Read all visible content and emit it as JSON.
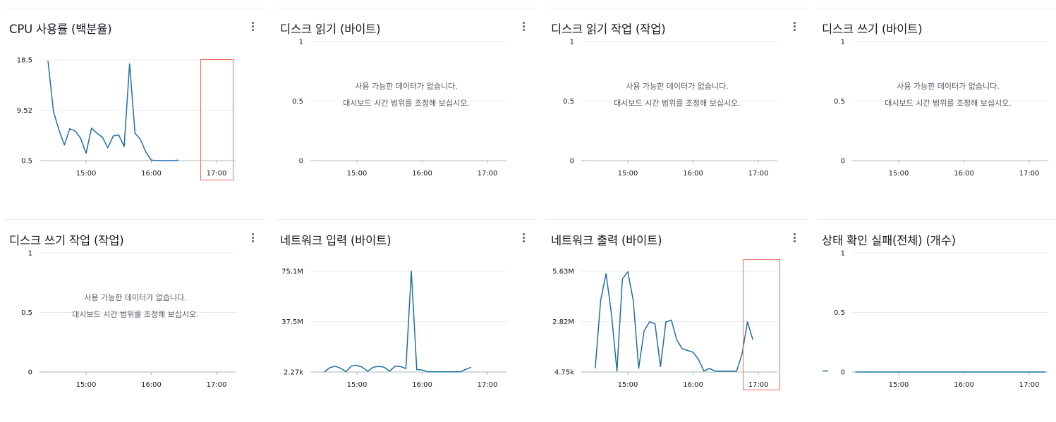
{
  "menu_icon": "more-vertical-icon",
  "colors": {
    "series": "#1f6fa5",
    "highlight": "#f26b5b",
    "grid": "#e9ebed"
  },
  "nodata": {
    "line1": "사용 가능한 데이터가 없습니다.",
    "line2": "대시보드 시간 범위를 조정해 보십시오."
  },
  "panels": [
    {
      "title": "CPU 사용률 (백분율)",
      "chart_data": {
        "type": "line",
        "y_ticks": [
          "18.5",
          "9.52",
          "0.5"
        ],
        "ylim": [
          0.5,
          18.5
        ],
        "x_ticks": [
          "15:00",
          "16:00",
          "17:00"
        ],
        "xlim": [
          -41,
          85
        ],
        "highlighted": true,
        "series": [
          {
            "x": [
              -35,
              -30,
              -25,
              -20,
              -15,
              -10,
              -5,
              0,
              5,
              10,
              15,
              20,
              25,
              30,
              35,
              40,
              45,
              50,
              55,
              60,
              65,
              70,
              75,
              80,
              85
            ],
            "y": [
              18.3,
              9.3,
              6,
              3.3,
              6.2,
              5.8,
              4.5,
              1.8,
              6.3,
              5.4,
              4.7,
              2.8,
              4.9,
              5.1,
              3.0,
              17.8,
              5.4,
              4.3,
              2.0,
              0.6,
              0.5,
              0.5,
              0.5,
              0.5,
              0.6
            ]
          }
        ]
      }
    },
    {
      "title": "디스크 읽기 (바이트)",
      "chart_data": {
        "type": "line",
        "y_ticks": [
          "1",
          "0.5",
          "0"
        ],
        "ylim": [
          0,
          1
        ],
        "x_ticks": [
          "15:00",
          "16:00",
          "17:00"
        ],
        "series": []
      }
    },
    {
      "title": "디스크 읽기 작업 (작업)",
      "chart_data": {
        "type": "line",
        "y_ticks": [
          "1",
          "0.5",
          "0"
        ],
        "ylim": [
          0,
          1
        ],
        "x_ticks": [
          "15:00",
          "16:00",
          "17:00"
        ],
        "series": []
      }
    },
    {
      "title": "디스크 쓰기 (바이트)",
      "chart_data": {
        "type": "line",
        "y_ticks": [
          "1",
          "0.5",
          "0"
        ],
        "ylim": [
          0,
          1
        ],
        "x_ticks": [
          "15:00",
          "16:00",
          "17:00"
        ],
        "series": []
      }
    },
    {
      "title": "디스크 쓰기 작업 (작업)",
      "chart_data": {
        "type": "line",
        "y_ticks": [
          "1",
          "0.5",
          "0"
        ],
        "ylim": [
          0,
          1
        ],
        "x_ticks": [
          "15:00",
          "16:00",
          "17:00"
        ],
        "series": []
      }
    },
    {
      "title": "네트워크 입력 (바이트)",
      "chart_data": {
        "type": "line",
        "y_ticks": [
          "75.1M",
          "37.5M",
          "2.27k"
        ],
        "ylim": [
          0,
          75.1
        ],
        "x_ticks": [
          "15:00",
          "16:00",
          "17:00"
        ],
        "series": [
          {
            "x": [
              -30,
              -25,
              -20,
              -15,
              -10,
              -5,
              0,
              5,
              10,
              15,
              20,
              25,
              30,
              35,
              40,
              45,
              50,
              55,
              60,
              65,
              70,
              75,
              80,
              85,
              90,
              95,
              100,
              105
            ],
            "y": [
              0,
              3.2,
              4.3,
              2.8,
              0.2,
              4.5,
              5.0,
              3.5,
              0.5,
              3.5,
              4.2,
              3.6,
              0.6,
              4.3,
              4.1,
              2.5,
              75.1,
              1.8,
              1.5,
              0.1,
              0.1,
              0.1,
              0.1,
              0.1,
              0.1,
              0.1,
              2.0,
              3.5
            ]
          }
        ]
      }
    },
    {
      "title": "네트워크 출력 (바이트)",
      "chart_data": {
        "type": "line",
        "y_ticks": [
          "5.63M",
          "2.82M",
          "4.75k"
        ],
        "ylim": [
          0,
          5.63
        ],
        "x_ticks": [
          "15:00",
          "16:00",
          "17:00"
        ],
        "highlighted": true,
        "series": [
          {
            "x": [
              -30,
              -25,
              -20,
              -15,
              -10,
              -5,
              0,
              5,
              10,
              15,
              20,
              25,
              30,
              35,
              40,
              45,
              50,
              55,
              60,
              65,
              70,
              75,
              80,
              85,
              90,
              95,
              100,
              105,
              110,
              115
            ],
            "y": [
              0.2,
              4.0,
              5.5,
              3.2,
              0.05,
              5.2,
              5.6,
              4.0,
              0.2,
              2.3,
              2.8,
              2.7,
              0.3,
              2.8,
              2.9,
              1.8,
              1.3,
              1.2,
              1.1,
              0.7,
              0.05,
              0.2,
              0.05,
              0.05,
              0.05,
              0.05,
              0.05,
              1.0,
              2.8,
              1.8
            ]
          }
        ]
      }
    },
    {
      "title": "상태 확인 실패(전체) (개수)",
      "chart_data": {
        "type": "line",
        "y_ticks": [
          "1",
          "0.5",
          "0"
        ],
        "ylim": [
          0,
          1
        ],
        "x_ticks": [
          "15:00",
          "16:00",
          "17:00"
        ],
        "series": [
          {
            "x": [
              -70,
              -65,
              -40,
              137
            ],
            "y": [
              0,
              0,
              0,
              0
            ]
          }
        ]
      }
    }
  ]
}
